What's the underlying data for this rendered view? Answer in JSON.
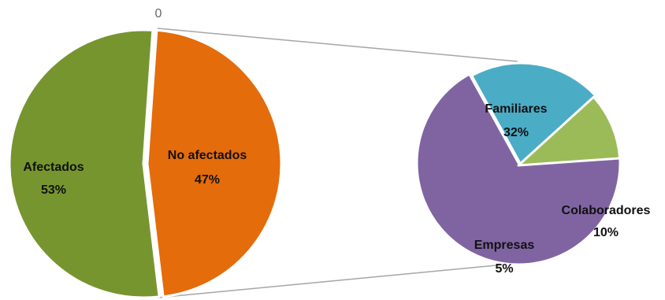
{
  "chart_data": {
    "type": "pie",
    "subtype": "pie-of-pie",
    "main_pie": {
      "slices": [
        {
          "label": "Afectados",
          "value": 53,
          "value_label": "53%",
          "color": "#77952F"
        },
        {
          "label": "No afectados",
          "value": 47,
          "value_label": "47%",
          "color": "#E46C0A"
        }
      ],
      "split_point_label": "0"
    },
    "secondary_pie": {
      "slices": [
        {
          "label": "Familiares",
          "value": 32,
          "value_label": "32%",
          "color": "#8064A2"
        },
        {
          "label": "Colaboradores",
          "value": 10,
          "value_label": "10%",
          "color": "#4BACC6"
        },
        {
          "label": "Empresas",
          "value": 5,
          "value_label": "5%",
          "color": "#9BBB59"
        }
      ]
    },
    "connector_color": "#A6A6A6"
  }
}
